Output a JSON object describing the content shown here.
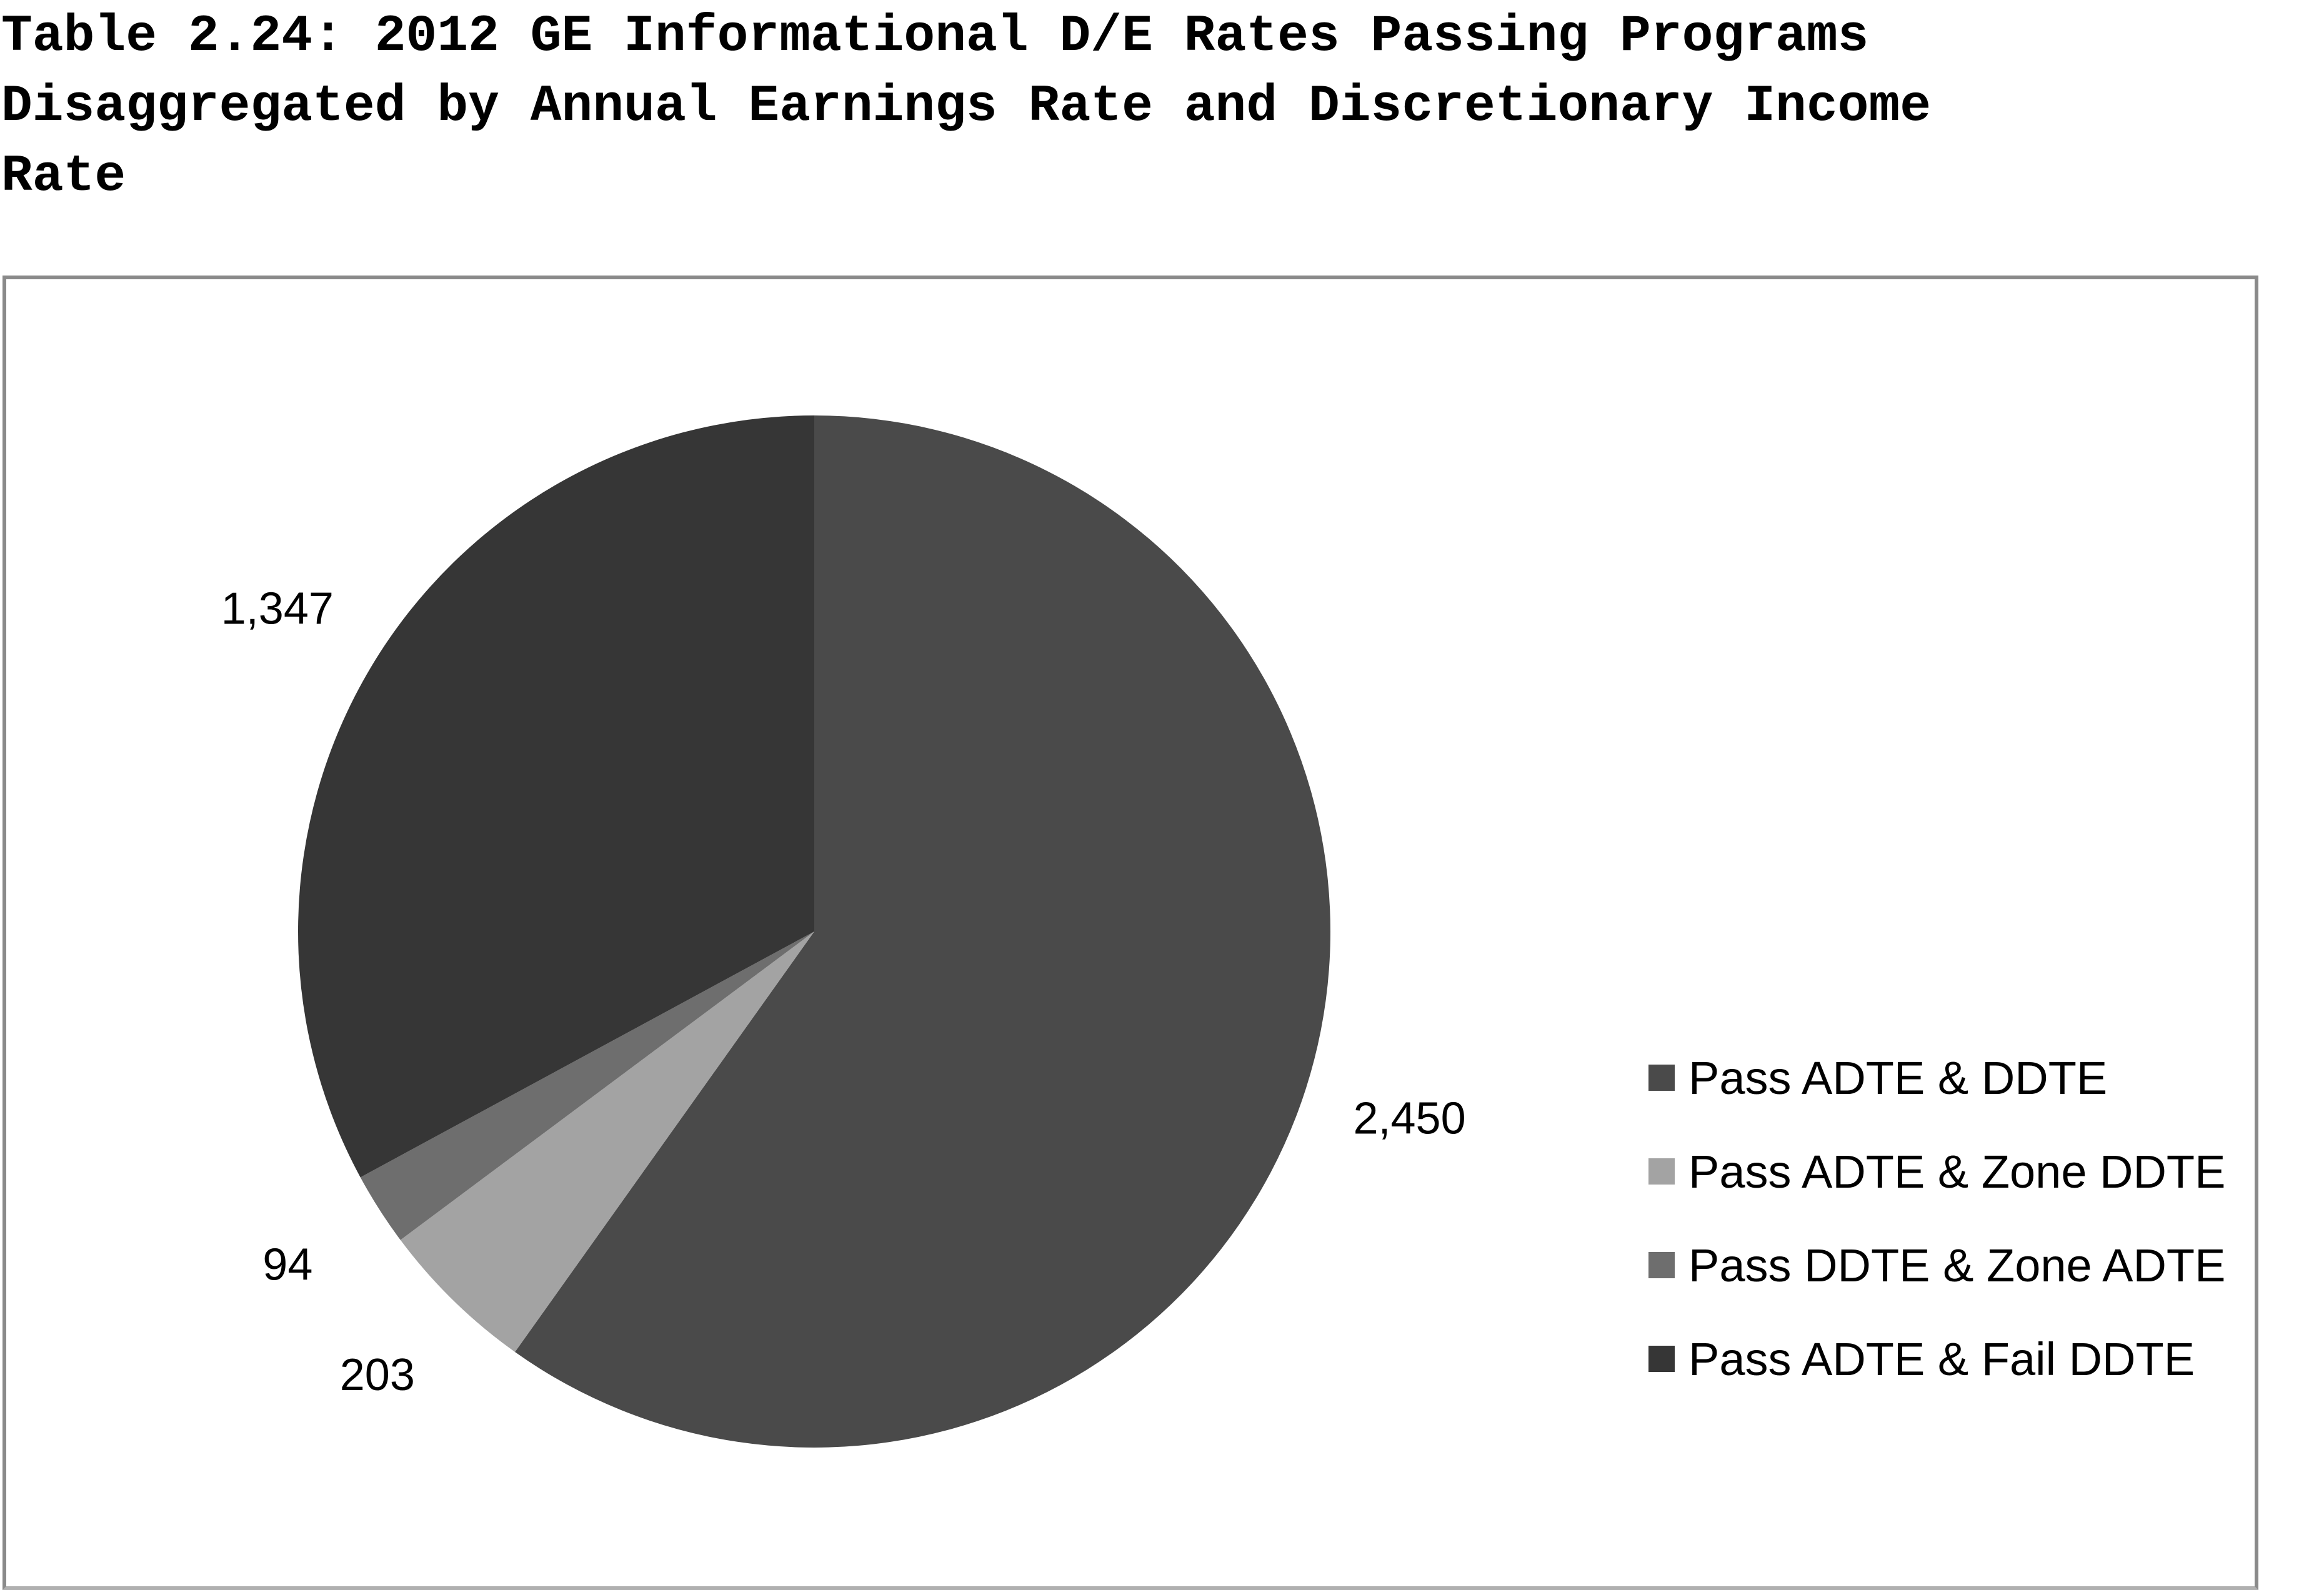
{
  "title": {
    "line1": "Table 2.24: 2012 GE Informational D/E Rates Passing Programs",
    "line2": "Disaggregated by Annual Earnings Rate and Discretionary Income",
    "line3": "Rate"
  },
  "chart_data": {
    "type": "pie",
    "title": "Table 2.24: 2012 GE Informational D/E Rates Passing Programs Disaggregated by Annual Earnings Rate and Discretionary Income Rate",
    "legend_position": "right",
    "start_angle": "12 o'clock",
    "direction": "clockwise",
    "slices": [
      {
        "label": "Pass ADTE & DDTE",
        "value": 2450,
        "value_label": "2,450",
        "color": "#4a4a4a"
      },
      {
        "label": "Pass ADTE & Zone DDTE",
        "value": 203,
        "value_label": "203",
        "color": "#a3a3a3"
      },
      {
        "label": "Pass DDTE & Zone ADTE",
        "value": 94,
        "value_label": "94",
        "color": "#6e6e6e"
      },
      {
        "label": "Pass ADTE & Fail DDTE",
        "value": 1347,
        "value_label": "1,347",
        "color": "#363636"
      }
    ]
  }
}
